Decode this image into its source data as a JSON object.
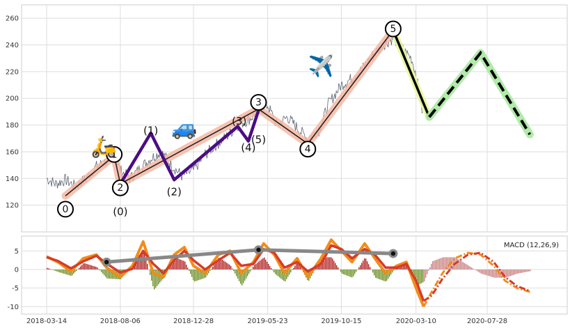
{
  "chart_data": [
    {
      "type": "line",
      "title": "",
      "xlabel": "",
      "ylabel": "",
      "ylim": [
        100,
        270
      ],
      "y_ticks": [
        120,
        140,
        160,
        180,
        200,
        220,
        240,
        260
      ],
      "x_tick_labels": [
        "2018-03-14",
        "2018-08-06",
        "2018-12-28",
        "2019-05-23",
        "2019-10-15",
        "2020-03-10",
        "2020-07-28"
      ],
      "grid": true,
      "colors": {
        "price": "#5b6470",
        "primary_wave_band": "#f7b7a3",
        "primary_wave_line": "#222222",
        "sub_wave": "#4b0d82",
        "corrective_a": "#000000",
        "corrective_a_band": "#e8f7a0",
        "projection": "#000000",
        "projection_band": "#a8e8a0"
      },
      "series": [
        {
          "role": "price",
          "x": [
            "2018-03-14",
            "2018-04-01",
            "2018-04-20",
            "2018-05-10",
            "2018-05-30",
            "2018-06-20",
            "2018-07-10",
            "2018-07-25",
            "2018-08-06",
            "2018-08-25",
            "2018-09-15",
            "2018-10-05",
            "2018-10-25",
            "2018-11-15",
            "2018-12-05",
            "2018-12-28",
            "2019-01-20",
            "2019-02-10",
            "2019-03-05",
            "2019-03-25",
            "2019-04-15",
            "2019-05-05",
            "2019-05-23",
            "2019-06-10",
            "2019-07-01",
            "2019-07-20",
            "2019-08-10",
            "2019-09-01",
            "2019-09-20",
            "2019-10-15",
            "2019-11-05",
            "2019-11-25",
            "2019-12-15",
            "2020-01-05",
            "2020-01-25",
            "2020-02-15",
            "2020-03-01",
            "2020-03-10",
            "2020-03-25"
          ],
          "values": [
            140,
            136,
            139,
            134,
            140,
            149,
            153,
            158,
            146,
            140,
            148,
            155,
            160,
            150,
            142,
            146,
            158,
            165,
            172,
            180,
            184,
            190,
            195,
            180,
            186,
            178,
            170,
            176,
            196,
            210,
            215,
            222,
            232,
            240,
            245,
            236,
            230,
            218,
            184
          ]
        },
        {
          "role": "primary-wave",
          "x": [
            "2018-04-20",
            "2018-07-25",
            "2018-08-06",
            "2019-05-05",
            "2019-08-10",
            "2020-01-25"
          ],
          "values": [
            127,
            157,
            136,
            192,
            166,
            251
          ]
        },
        {
          "role": "sub-wave",
          "x": [
            "2018-08-06",
            "2018-10-05",
            "2018-11-20",
            "2019-03-25",
            "2019-04-15",
            "2019-05-05"
          ],
          "values": [
            136,
            174,
            139,
            179,
            168,
            191
          ]
        },
        {
          "role": "corrective-a",
          "x": [
            "2020-01-25",
            "2020-04-05"
          ],
          "values": [
            251,
            186
          ]
        },
        {
          "role": "projection",
          "x": [
            "2020-04-05",
            "2020-07-15",
            "2020-10-20"
          ],
          "values": [
            186,
            234,
            173
          ]
        }
      ],
      "wave_labels": [
        {
          "text": "0",
          "circled": true,
          "x": "2018-04-20",
          "y": 117
        },
        {
          "text": "1",
          "circled": true,
          "x": "2018-07-25",
          "y": 158
        },
        {
          "text": "2",
          "circled": true,
          "x": "2018-08-06",
          "y": 133
        },
        {
          "text": "3",
          "circled": true,
          "x": "2019-05-05",
          "y": 197
        },
        {
          "text": "4",
          "circled": true,
          "x": "2019-08-10",
          "y": 162
        },
        {
          "text": "5",
          "circled": true,
          "x": "2020-01-25",
          "y": 252
        },
        {
          "text": "(0)",
          "circled": false,
          "x": "2018-08-06",
          "y": 115
        },
        {
          "text": "(1)",
          "circled": false,
          "x": "2018-10-05",
          "y": 176
        },
        {
          "text": "(2)",
          "circled": false,
          "x": "2018-11-20",
          "y": 130
        },
        {
          "text": "(3)",
          "circled": false,
          "x": "2019-03-28",
          "y": 183
        },
        {
          "text": "(4)",
          "circled": false,
          "x": "2019-04-15",
          "y": 163
        },
        {
          "text": "(5)",
          "circled": false,
          "x": "2019-05-05",
          "y": 169
        }
      ],
      "icons": [
        {
          "name": "scooter-icon",
          "glyph": "🛵",
          "x": "2018-07-05",
          "y": 164
        },
        {
          "name": "car-icon",
          "glyph": "🚙",
          "x": "2018-12-10",
          "y": 178
        },
        {
          "name": "airplane-icon",
          "glyph": "✈️",
          "x": "2019-09-05",
          "y": 224
        }
      ]
    },
    {
      "type": "line",
      "title": "",
      "legend": "MACD (12,26,9)",
      "legend_position": "top-right",
      "ylim": [
        -12,
        9
      ],
      "y_ticks": [
        -10,
        -5,
        0,
        5
      ],
      "x_tick_labels": [
        "2018-03-14",
        "2018-08-06",
        "2018-12-28",
        "2019-05-23",
        "2019-10-15",
        "2020-03-10",
        "2020-07-28"
      ],
      "grid": true,
      "colors": {
        "macd": "#f28c18",
        "signal": "#d63b2a",
        "hist_pos": "#b22222",
        "hist_neg": "#6b8e23",
        "hist_projection": "#c98080",
        "trend": "#888888"
      },
      "series": [
        {
          "name": "MACD",
          "x": [
            "2018-03-14",
            "2018-04-05",
            "2018-05-01",
            "2018-05-25",
            "2018-06-20",
            "2018-07-10",
            "2018-08-06",
            "2018-08-30",
            "2018-09-20",
            "2018-10-10",
            "2018-10-30",
            "2018-11-20",
            "2018-12-10",
            "2018-12-28",
            "2019-01-20",
            "2019-02-15",
            "2019-03-10",
            "2019-04-01",
            "2019-04-25",
            "2019-05-15",
            "2019-06-05",
            "2019-06-25",
            "2019-07-20",
            "2019-08-10",
            "2019-09-05",
            "2019-09-25",
            "2019-10-15",
            "2019-11-05",
            "2019-11-30",
            "2019-12-20",
            "2020-01-10",
            "2020-02-01",
            "2020-02-20",
            "2020-03-10",
            "2020-03-25",
            "2020-04-10",
            "2020-05-01",
            "2020-05-25",
            "2020-06-20",
            "2020-07-15",
            "2020-08-10",
            "2020-09-01",
            "2020-09-25",
            "2020-10-20"
          ],
          "values": [
            3.5,
            2,
            -0.5,
            3,
            4,
            0.5,
            -2,
            1,
            7.5,
            -1,
            -2,
            4,
            6,
            1,
            -1,
            4,
            5,
            -1,
            2,
            7,
            4,
            -1,
            3,
            -2,
            3,
            8,
            5,
            2,
            7,
            3,
            -1,
            1,
            2,
            -5,
            -10,
            -6,
            -1,
            3,
            4.5,
            4,
            1,
            -3,
            -5,
            -6
          ]
        },
        {
          "name": "Signal",
          "x": [
            "2018-03-14",
            "2018-04-05",
            "2018-05-01",
            "2018-05-25",
            "2018-06-20",
            "2018-07-10",
            "2018-08-06",
            "2018-08-30",
            "2018-09-20",
            "2018-10-10",
            "2018-10-30",
            "2018-11-20",
            "2018-12-10",
            "2018-12-28",
            "2019-01-20",
            "2019-02-15",
            "2019-03-10",
            "2019-04-01",
            "2019-04-25",
            "2019-05-15",
            "2019-06-05",
            "2019-06-25",
            "2019-07-20",
            "2019-08-10",
            "2019-09-05",
            "2019-09-25",
            "2019-10-15",
            "2019-11-05",
            "2019-11-30",
            "2019-12-20",
            "2020-01-10",
            "2020-02-01",
            "2020-02-20",
            "2020-03-10",
            "2020-03-25",
            "2020-04-10",
            "2020-05-01",
            "2020-05-25",
            "2020-06-20",
            "2020-07-15",
            "2020-08-10",
            "2020-09-01",
            "2020-09-25",
            "2020-10-20"
          ],
          "values": [
            3.3,
            2.3,
            0.3,
            2.2,
            3.7,
            1.6,
            -0.8,
            0.2,
            5,
            1.5,
            -1,
            2.5,
            5,
            2.5,
            0,
            2.5,
            4.5,
            1,
            1.5,
            5.5,
            4.5,
            0.5,
            2,
            -0.5,
            1.5,
            6.5,
            5.5,
            3,
            5.5,
            4,
            0.5,
            0.5,
            1.5,
            -3,
            -8.5,
            -7,
            -2.5,
            1.5,
            4,
            4.5,
            2,
            -2,
            -4.5,
            -5.8
          ]
        },
        {
          "name": "Trend",
          "x": [
            "2018-07-10",
            "2019-05-05",
            "2020-01-25"
          ],
          "values": [
            2,
            5.3,
            4.3
          ]
        }
      ]
    }
  ]
}
